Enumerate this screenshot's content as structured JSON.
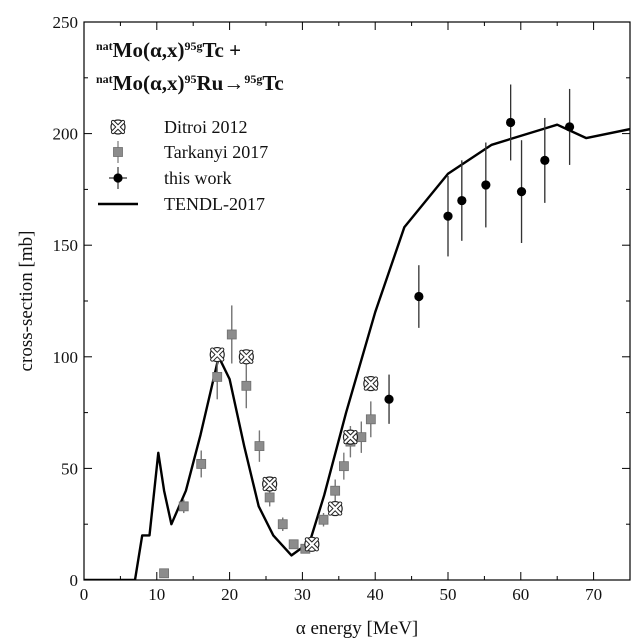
{
  "chart_data": {
    "type": "scatter",
    "title": {
      "line1": [
        {
          "text": "nat",
          "sup": true
        },
        {
          "text": "Mo(α,x)",
          "sup": false
        },
        {
          "text": "95g",
          "sup": true
        },
        {
          "text": "Tc +",
          "sup": false
        }
      ],
      "line2": [
        {
          "text": "nat",
          "sup": true
        },
        {
          "text": "Mo(α,x)",
          "sup": false
        },
        {
          "text": "95",
          "sup": true
        },
        {
          "text": "Ru→",
          "sup": false
        },
        {
          "text": "95g",
          "sup": true
        },
        {
          "text": "Tc",
          "sup": false
        }
      ]
    },
    "xlabel": "α energy [MeV]",
    "ylabel": "cross-section [mb]",
    "xlim": [
      0,
      75
    ],
    "ylim": [
      0,
      250
    ],
    "xticks": [
      0,
      10,
      20,
      30,
      40,
      50,
      60,
      70
    ],
    "yticks": [
      0,
      50,
      100,
      150,
      200,
      250
    ],
    "legend_position": "top-left",
    "series": [
      {
        "name": "Ditroi 2012",
        "marker": "cross-circle",
        "color": "#ffffff",
        "points": [
          {
            "x": 18.3,
            "y": 101,
            "yerr": 0
          },
          {
            "x": 22.3,
            "y": 100,
            "yerr": 0
          },
          {
            "x": 25.5,
            "y": 43,
            "yerr": 0
          },
          {
            "x": 31.3,
            "y": 16,
            "yerr": 0
          },
          {
            "x": 34.5,
            "y": 32,
            "yerr": 0
          },
          {
            "x": 36.6,
            "y": 64,
            "yerr": 0
          },
          {
            "x": 39.4,
            "y": 88,
            "yerr": 0
          }
        ]
      },
      {
        "name": "Tarkanyi 2017",
        "marker": "square",
        "color": "#8c8c8c",
        "points": [
          {
            "x": 11.0,
            "y": 3,
            "yerr": 1
          },
          {
            "x": 13.7,
            "y": 33,
            "yerr": 3
          },
          {
            "x": 16.1,
            "y": 52,
            "yerr": 6
          },
          {
            "x": 18.3,
            "y": 91,
            "yerr": 10
          },
          {
            "x": 20.3,
            "y": 110,
            "yerr": 13
          },
          {
            "x": 22.3,
            "y": 87,
            "yerr": 10
          },
          {
            "x": 24.1,
            "y": 60,
            "yerr": 7
          },
          {
            "x": 25.5,
            "y": 37,
            "yerr": 4
          },
          {
            "x": 27.3,
            "y": 25,
            "yerr": 3
          },
          {
            "x": 28.8,
            "y": 16,
            "yerr": 2
          },
          {
            "x": 30.4,
            "y": 14,
            "yerr": 2
          },
          {
            "x": 32.9,
            "y": 27,
            "yerr": 3
          },
          {
            "x": 34.5,
            "y": 40,
            "yerr": 5
          },
          {
            "x": 35.7,
            "y": 51,
            "yerr": 6
          },
          {
            "x": 36.6,
            "y": 62,
            "yerr": 7
          },
          {
            "x": 38.1,
            "y": 64,
            "yerr": 7
          },
          {
            "x": 39.4,
            "y": 72,
            "yerr": 8
          }
        ]
      },
      {
        "name": "this work",
        "marker": "circle",
        "color": "#000000",
        "points": [
          {
            "x": 41.9,
            "y": 81,
            "yerr": 11
          },
          {
            "x": 46.0,
            "y": 127,
            "yerr": 14
          },
          {
            "x": 50.0,
            "y": 163,
            "yerr": 18
          },
          {
            "x": 51.9,
            "y": 170,
            "yerr": 18
          },
          {
            "x": 55.2,
            "y": 177,
            "yerr": 19
          },
          {
            "x": 58.6,
            "y": 205,
            "yerr": 17
          },
          {
            "x": 60.1,
            "y": 174,
            "yerr": 23
          },
          {
            "x": 63.3,
            "y": 188,
            "yerr": 19
          },
          {
            "x": 66.7,
            "y": 203,
            "yerr": 17
          }
        ]
      },
      {
        "name": "TENDL-2017",
        "marker": "line",
        "color": "#000000",
        "points": [
          {
            "x": 0,
            "y": 0
          },
          {
            "x": 7,
            "y": 0
          },
          {
            "x": 8,
            "y": 20
          },
          {
            "x": 9,
            "y": 20
          },
          {
            "x": 10.2,
            "y": 57
          },
          {
            "x": 11,
            "y": 40
          },
          {
            "x": 12,
            "y": 25
          },
          {
            "x": 14,
            "y": 40
          },
          {
            "x": 16,
            "y": 65
          },
          {
            "x": 18.5,
            "y": 100
          },
          {
            "x": 20,
            "y": 90
          },
          {
            "x": 22,
            "y": 60
          },
          {
            "x": 24,
            "y": 33
          },
          {
            "x": 26,
            "y": 20
          },
          {
            "x": 28.5,
            "y": 11
          },
          {
            "x": 31,
            "y": 17
          },
          {
            "x": 33,
            "y": 38
          },
          {
            "x": 36,
            "y": 75
          },
          {
            "x": 40,
            "y": 120
          },
          {
            "x": 44,
            "y": 158
          },
          {
            "x": 50,
            "y": 182
          },
          {
            "x": 56,
            "y": 195
          },
          {
            "x": 62,
            "y": 201
          },
          {
            "x": 65,
            "y": 204
          },
          {
            "x": 69,
            "y": 198
          },
          {
            "x": 75,
            "y": 202
          }
        ]
      }
    ]
  }
}
